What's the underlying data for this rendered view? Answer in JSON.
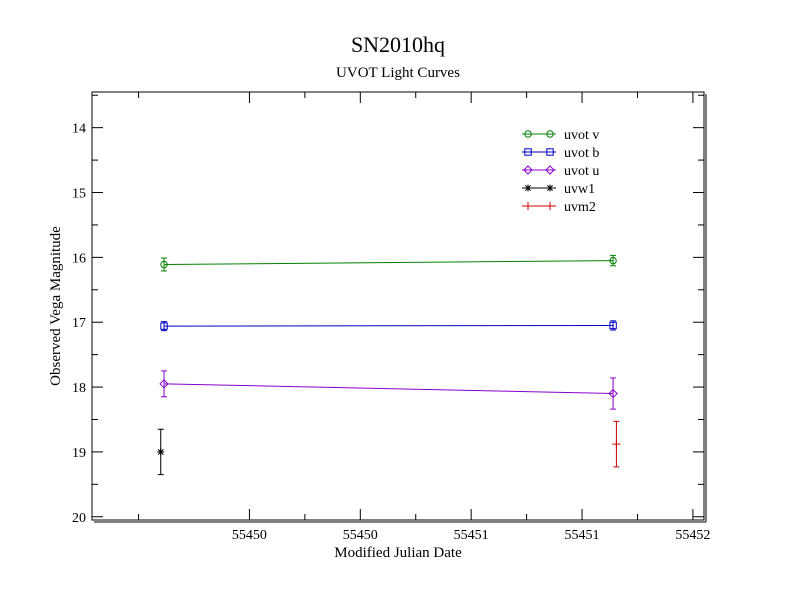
{
  "chart_data": {
    "type": "line",
    "title": "SN2010hq",
    "subtitle": "UVOT Light Curves",
    "xlabel": "Modified Julian Date",
    "ylabel": "Observed Vega Magnitude",
    "xlim": [
      55449.29,
      55452.05
    ],
    "ylim": [
      20.05,
      13.45
    ],
    "y_inverted": true,
    "x_ticks": [
      55450,
      55450.5,
      55451,
      55451.5,
      55452
    ],
    "x_tick_labels": [
      "55450",
      "55450",
      "55451",
      "55451",
      "55452"
    ],
    "y_ticks": [
      14,
      15,
      16,
      17,
      18,
      19,
      20
    ],
    "y_tick_labels": [
      "14",
      "15",
      "16",
      "17",
      "18",
      "19",
      "20"
    ],
    "legend_position": "top-right",
    "grid": false,
    "series": [
      {
        "name": "uvot v",
        "color": "#008000",
        "marker": "circle",
        "connect": true,
        "x": [
          55449.615,
          55451.64
        ],
        "y": [
          16.11,
          16.05
        ],
        "err": [
          0.1,
          0.08
        ]
      },
      {
        "name": "uvot b",
        "color": "#0000c0",
        "marker": "square",
        "connect": true,
        "x": [
          55449.615,
          55451.64
        ],
        "y": [
          17.06,
          17.05
        ],
        "err": [
          0.07,
          0.07
        ]
      },
      {
        "name": "uvot u",
        "color": "#8800cc",
        "marker": "diamond",
        "connect": true,
        "x": [
          55449.615,
          55451.64
        ],
        "y": [
          17.95,
          18.1
        ],
        "err": [
          0.2,
          0.24
        ]
      },
      {
        "name": "uvw1",
        "color": "#000000",
        "marker": "star",
        "connect": false,
        "x": [
          55449.6
        ],
        "y": [
          19.0
        ],
        "err": [
          0.35
        ]
      },
      {
        "name": "uvm2",
        "color": "#d00000",
        "marker": "plus",
        "connect": false,
        "x": [
          55451.655
        ],
        "y": [
          18.88
        ],
        "err": [
          0.35
        ]
      }
    ]
  }
}
